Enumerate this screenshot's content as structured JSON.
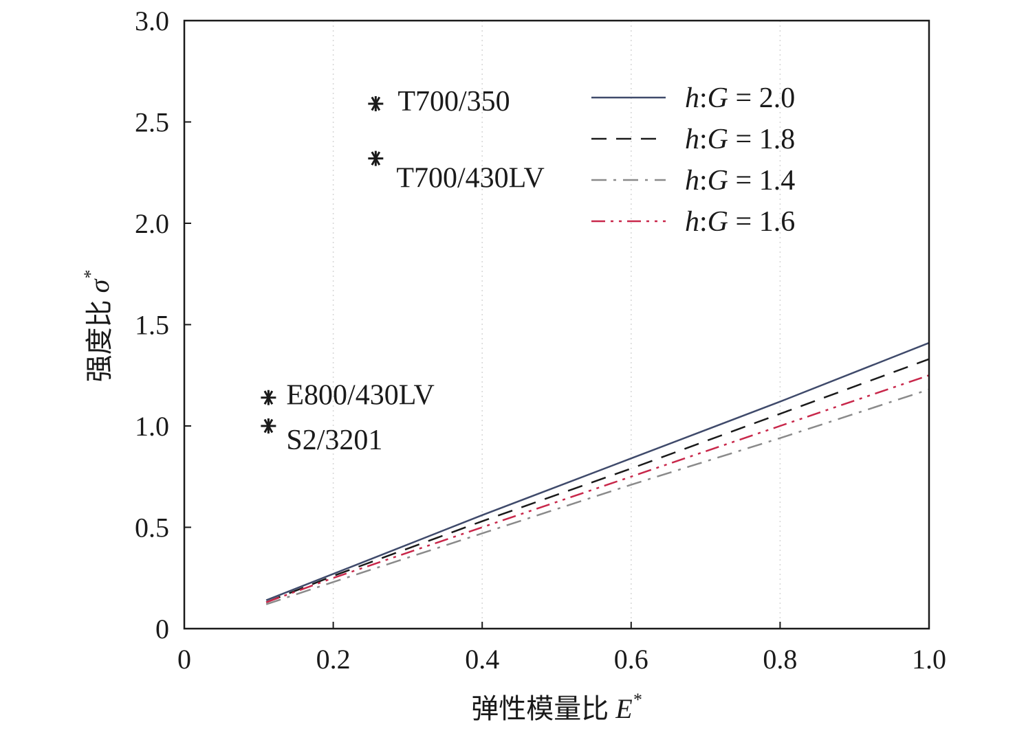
{
  "chart_data": {
    "type": "line",
    "xlabel": "弹性模量比",
    "xlabel_symbol": "E",
    "xlabel_sup": "*",
    "ylabel": "强度比",
    "ylabel_symbol": "σ",
    "ylabel_sup": "*",
    "xlim": [
      0,
      1.0
    ],
    "ylim": [
      0,
      3.0
    ],
    "x_ticks": [
      0,
      0.2,
      0.4,
      0.6,
      0.8,
      1.0
    ],
    "x_tick_labels": [
      "0",
      "0.2",
      "0.4",
      "0.6",
      "0.8",
      "1.0"
    ],
    "y_ticks": [
      0,
      0.5,
      1.0,
      1.5,
      2.0,
      2.5,
      3.0
    ],
    "y_tick_labels": [
      "0",
      "0.5",
      "1.0",
      "1.5",
      "2.0",
      "2.5",
      "3.0"
    ],
    "grid": "vertical dotted",
    "legend_position": "top-right",
    "series": [
      {
        "name": "h:G = 2.0",
        "name_parts": [
          "h",
          ":",
          "G",
          " = 2.0"
        ],
        "dash": "solid",
        "color": "#3f4a6b",
        "x": [
          0.11,
          0.2,
          0.4,
          0.6,
          0.8,
          1.0
        ],
        "y": [
          0.14,
          0.27,
          0.56,
          0.84,
          1.12,
          1.41
        ]
      },
      {
        "name": "h:G = 1.8",
        "name_parts": [
          "h",
          ":",
          "G",
          " = 1.8"
        ],
        "dash": "dash",
        "color": "#1a1a1a",
        "x": [
          0.11,
          0.2,
          0.4,
          0.6,
          0.8,
          1.0
        ],
        "y": [
          0.13,
          0.26,
          0.53,
          0.79,
          1.06,
          1.33
        ]
      },
      {
        "name": "h:G = 1.4",
        "name_parts": [
          "h",
          ":",
          "G",
          " = 1.4"
        ],
        "dash": "dashdot",
        "color": "#8a8a8a",
        "x": [
          0.11,
          0.2,
          0.4,
          0.6,
          0.8,
          1.0
        ],
        "y": [
          0.12,
          0.23,
          0.47,
          0.71,
          0.94,
          1.18
        ]
      },
      {
        "name": "h:G = 1.6",
        "name_parts": [
          "h",
          ":",
          "G",
          " = 1.6"
        ],
        "dash": "dashdotdot",
        "color": "#c8274a",
        "x": [
          0.11,
          0.2,
          0.4,
          0.6,
          0.8,
          1.0
        ],
        "y": [
          0.13,
          0.25,
          0.5,
          0.75,
          1.0,
          1.25
        ]
      }
    ],
    "points": [
      {
        "label": "T700/350",
        "x": 0.257,
        "y": 2.59
      },
      {
        "label": "T700/430LV",
        "x": 0.257,
        "y": 2.32
      },
      {
        "label": "E800/430LV",
        "x": 0.113,
        "y": 1.14
      },
      {
        "label": "S2/3201",
        "x": 0.113,
        "y": 1.0
      }
    ],
    "marker_icon": "asterisk-icon"
  }
}
